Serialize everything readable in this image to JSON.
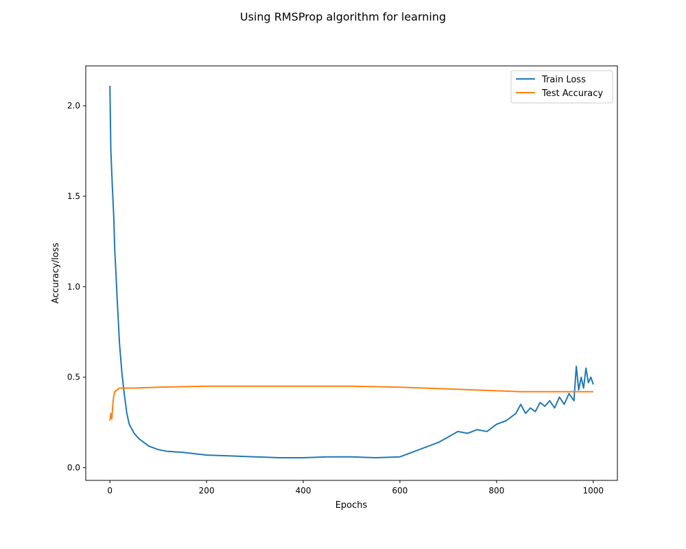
{
  "chart_data": {
    "type": "line",
    "title": "Using RMSProp algorithm for learning",
    "xlabel": "Epochs",
    "ylabel": "Accuracy/loss",
    "xlim": [
      -50,
      1050
    ],
    "ylim": [
      -0.07,
      2.22
    ],
    "xticks": [
      0,
      200,
      400,
      600,
      800,
      1000
    ],
    "yticks": [
      0.0,
      0.5,
      1.0,
      1.5,
      2.0
    ],
    "xtick_labels": [
      "0",
      "200",
      "400",
      "600",
      "800",
      "1000"
    ],
    "ytick_labels": [
      "0.0",
      "0.5",
      "1.0",
      "1.5",
      "2.0"
    ],
    "grid": false,
    "legend_position": "top-right",
    "series": [
      {
        "name": "Train Loss",
        "color": "#1f77b4",
        "x": [
          0,
          2,
          5,
          8,
          10,
          12,
          15,
          18,
          20,
          25,
          30,
          35,
          40,
          50,
          60,
          70,
          80,
          100,
          120,
          150,
          200,
          250,
          300,
          350,
          400,
          450,
          500,
          550,
          600,
          620,
          650,
          680,
          700,
          720,
          740,
          760,
          780,
          800,
          820,
          840,
          850,
          860,
          870,
          880,
          890,
          900,
          910,
          920,
          930,
          940,
          950,
          960,
          965,
          970,
          975,
          980,
          985,
          990,
          995,
          1000
        ],
        "y": [
          2.11,
          1.75,
          1.55,
          1.38,
          1.2,
          1.1,
          0.93,
          0.78,
          0.68,
          0.52,
          0.4,
          0.3,
          0.24,
          0.19,
          0.16,
          0.14,
          0.12,
          0.1,
          0.09,
          0.085,
          0.07,
          0.065,
          0.06,
          0.055,
          0.055,
          0.06,
          0.06,
          0.055,
          0.06,
          0.08,
          0.11,
          0.14,
          0.17,
          0.2,
          0.19,
          0.21,
          0.2,
          0.24,
          0.26,
          0.3,
          0.35,
          0.3,
          0.33,
          0.31,
          0.36,
          0.34,
          0.37,
          0.33,
          0.39,
          0.35,
          0.41,
          0.37,
          0.56,
          0.43,
          0.5,
          0.44,
          0.55,
          0.47,
          0.5,
          0.46
        ]
      },
      {
        "name": "Test Accuracy",
        "color": "#ff7f0e",
        "x": [
          0,
          2,
          4,
          6,
          8,
          10,
          15,
          20,
          30,
          50,
          100,
          200,
          300,
          400,
          500,
          600,
          700,
          750,
          800,
          850,
          900,
          950,
          1000
        ],
        "y": [
          0.26,
          0.3,
          0.27,
          0.35,
          0.4,
          0.42,
          0.43,
          0.44,
          0.44,
          0.44,
          0.445,
          0.45,
          0.45,
          0.45,
          0.45,
          0.445,
          0.435,
          0.43,
          0.425,
          0.42,
          0.42,
          0.42,
          0.42
        ]
      }
    ]
  }
}
